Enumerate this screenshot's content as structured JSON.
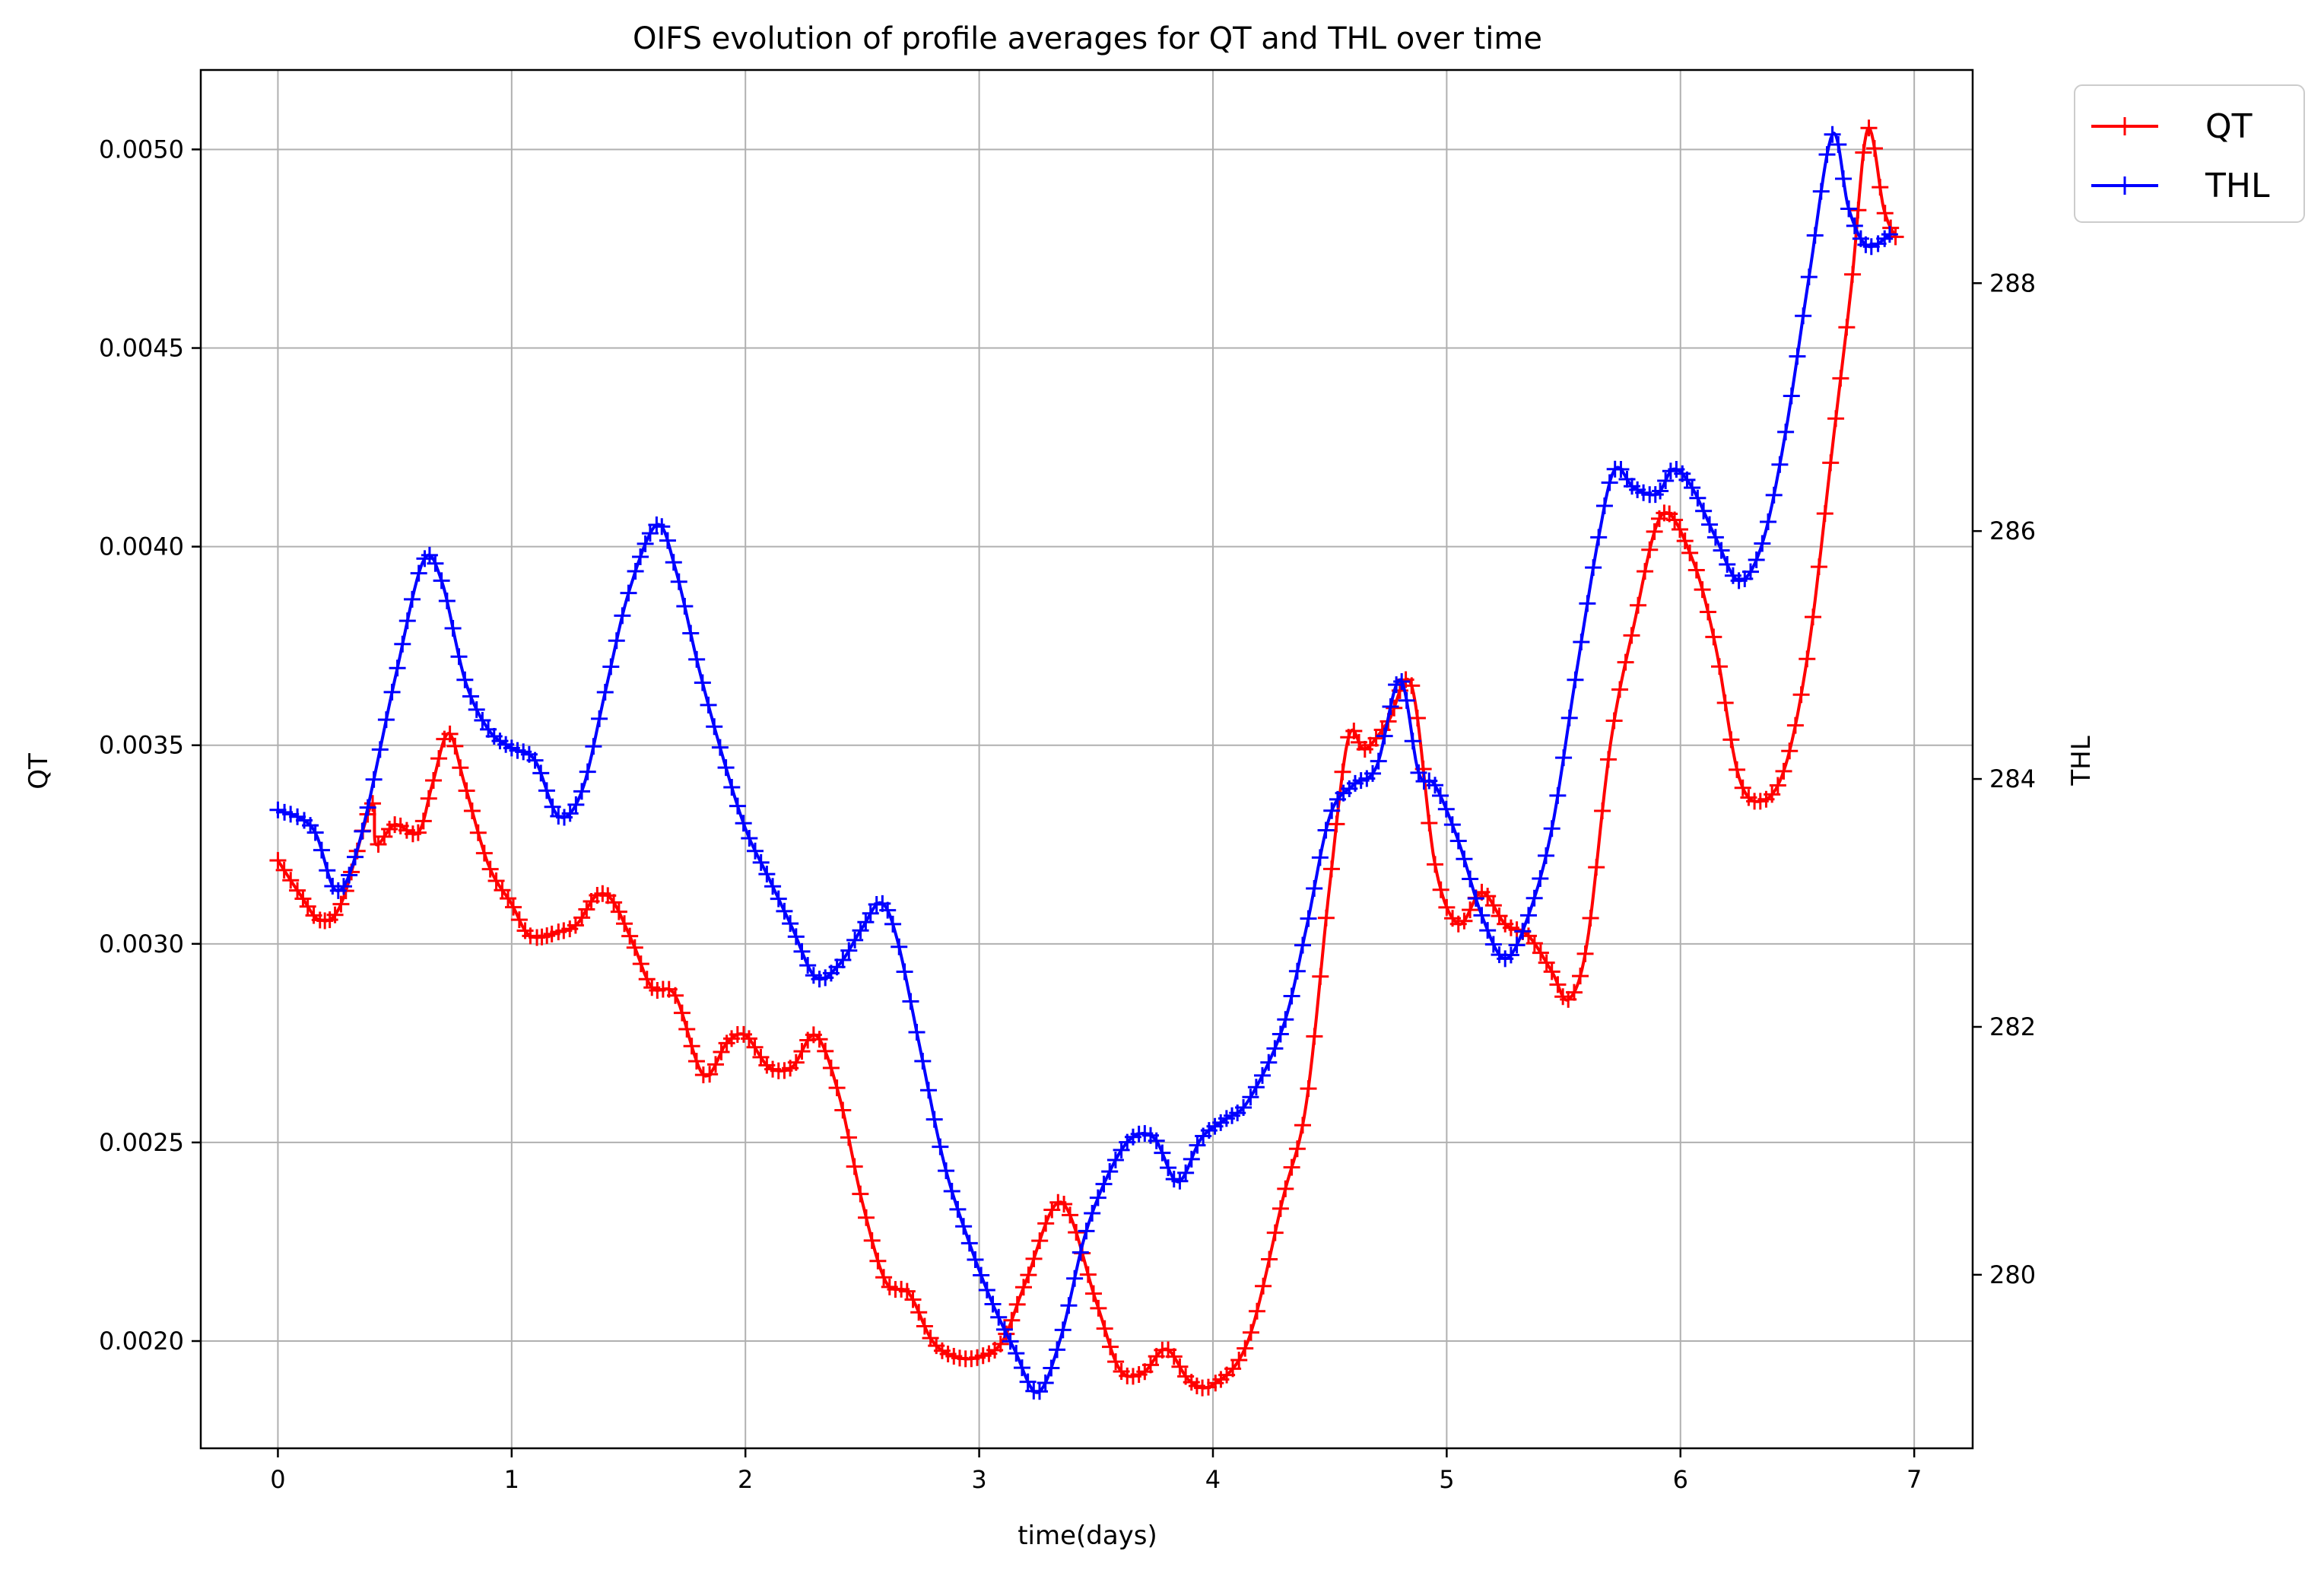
{
  "chart_data": {
    "type": "line",
    "title": "OIFS evolution of profile averages for QT and THL over time",
    "xlabel": "time(days)",
    "ylabel": "QT",
    "y2label": "THL",
    "xlim": [
      -0.33,
      7.25
    ],
    "ylim": [
      0.00173,
      0.0052
    ],
    "y2lim": [
      278.6,
      289.72
    ],
    "xticks": [
      0,
      1,
      2,
      3,
      4,
      5,
      6,
      7
    ],
    "yticks": [
      0.002,
      0.0025,
      0.003,
      0.0035,
      0.004,
      0.0045,
      0.005
    ],
    "ytick_labels": [
      "0.0020",
      "0.0025",
      "0.0030",
      "0.0035",
      "0.0040",
      "0.0045",
      "0.0050"
    ],
    "y2ticks": [
      280,
      282,
      284,
      286,
      288
    ],
    "grid": true,
    "legend_position": "outside-top-right",
    "marker": "+",
    "series": [
      {
        "name": "QT",
        "axis": "left",
        "color": "#ff0000",
        "points": [
          [
            0,
            0.00321
          ],
          [
            0.1,
            0.00312
          ],
          [
            0.18,
            0.00306
          ],
          [
            0.27,
            0.0031
          ],
          [
            0.4,
            0.00335
          ],
          [
            0.42,
            0.00325
          ],
          [
            0.5,
            0.0033
          ],
          [
            0.6,
            0.00328
          ],
          [
            0.66,
            0.0034
          ],
          [
            0.73,
            0.00353
          ],
          [
            0.8,
            0.0034
          ],
          [
            0.9,
            0.0032
          ],
          [
            1.0,
            0.0031
          ],
          [
            1.08,
            0.00302
          ],
          [
            1.2,
            0.00303
          ],
          [
            1.28,
            0.00305
          ],
          [
            1.36,
            0.00312
          ],
          [
            1.43,
            0.00311
          ],
          [
            1.52,
            0.003
          ],
          [
            1.6,
            0.00289
          ],
          [
            1.7,
            0.00287
          ],
          [
            1.82,
            0.00267
          ],
          [
            1.92,
            0.00275
          ],
          [
            2.0,
            0.00277
          ],
          [
            2.1,
            0.00269
          ],
          [
            2.2,
            0.00269
          ],
          [
            2.3,
            0.00277
          ],
          [
            2.4,
            0.00262
          ],
          [
            2.5,
            0.00235
          ],
          [
            2.6,
            0.00215
          ],
          [
            2.7,
            0.00212
          ],
          [
            2.8,
            0.002
          ],
          [
            2.9,
            0.00196
          ],
          [
            3.0,
            0.00196
          ],
          [
            3.1,
            0.002
          ],
          [
            3.2,
            0.00215
          ],
          [
            3.35,
            0.00235
          ],
          [
            3.5,
            0.0021
          ],
          [
            3.6,
            0.00193
          ],
          [
            3.7,
            0.00192
          ],
          [
            3.8,
            0.00198
          ],
          [
            3.9,
            0.0019
          ],
          [
            4.0,
            0.00189
          ],
          [
            4.15,
            0.002
          ],
          [
            4.3,
            0.00236
          ],
          [
            4.4,
            0.0026
          ],
          [
            4.5,
            0.00315
          ],
          [
            4.58,
            0.00352
          ],
          [
            4.65,
            0.00349
          ],
          [
            4.75,
            0.00356
          ],
          [
            4.85,
            0.00365
          ],
          [
            4.95,
            0.0032
          ],
          [
            5.05,
            0.00305
          ],
          [
            5.15,
            0.00313
          ],
          [
            5.25,
            0.00305
          ],
          [
            5.35,
            0.00302
          ],
          [
            5.45,
            0.00293
          ],
          [
            5.52,
            0.00286
          ],
          [
            5.6,
            0.003
          ],
          [
            5.7,
            0.0035
          ],
          [
            5.8,
            0.0038
          ],
          [
            5.92,
            0.00408
          ],
          [
            6.05,
            0.00397
          ],
          [
            6.15,
            0.00375
          ],
          [
            6.25,
            0.00342
          ],
          [
            6.35,
            0.00336
          ],
          [
            6.45,
            0.00345
          ],
          [
            6.55,
            0.00375
          ],
          [
            6.65,
            0.00425
          ],
          [
            6.73,
            0.00465
          ],
          [
            6.8,
            0.00505
          ],
          [
            6.87,
            0.00485
          ],
          [
            6.92,
            0.00478
          ]
        ]
      },
      {
        "name": "THL",
        "axis": "right",
        "color": "#0000ff",
        "points": [
          [
            0,
            283.75
          ],
          [
            0.15,
            283.6
          ],
          [
            0.25,
            283.1
          ],
          [
            0.35,
            283.5
          ],
          [
            0.5,
            284.8
          ],
          [
            0.62,
            285.75
          ],
          [
            0.7,
            285.6
          ],
          [
            0.8,
            284.8
          ],
          [
            0.9,
            284.4
          ],
          [
            1.0,
            284.25
          ],
          [
            1.1,
            284.15
          ],
          [
            1.2,
            283.7
          ],
          [
            1.3,
            283.9
          ],
          [
            1.4,
            284.7
          ],
          [
            1.5,
            285.5
          ],
          [
            1.62,
            286.05
          ],
          [
            1.7,
            285.7
          ],
          [
            1.8,
            284.9
          ],
          [
            1.9,
            284.2
          ],
          [
            2.0,
            283.6
          ],
          [
            2.1,
            283.2
          ],
          [
            2.2,
            282.8
          ],
          [
            2.3,
            282.4
          ],
          [
            2.4,
            282.5
          ],
          [
            2.5,
            282.8
          ],
          [
            2.58,
            283.0
          ],
          [
            2.65,
            282.7
          ],
          [
            2.75,
            281.8
          ],
          [
            2.85,
            280.9
          ],
          [
            2.95,
            280.3
          ],
          [
            3.05,
            279.8
          ],
          [
            3.15,
            279.4
          ],
          [
            3.25,
            279.05
          ],
          [
            3.35,
            279.5
          ],
          [
            3.45,
            280.3
          ],
          [
            3.55,
            280.8
          ],
          [
            3.65,
            281.1
          ],
          [
            3.75,
            281.1
          ],
          [
            3.85,
            280.75
          ],
          [
            3.95,
            281.1
          ],
          [
            4.05,
            281.25
          ],
          [
            4.15,
            281.4
          ],
          [
            4.3,
            282.0
          ],
          [
            4.4,
            282.8
          ],
          [
            4.5,
            283.7
          ],
          [
            4.6,
            283.95
          ],
          [
            4.7,
            284.1
          ],
          [
            4.8,
            284.8
          ],
          [
            4.88,
            284.05
          ],
          [
            4.95,
            283.95
          ],
          [
            5.05,
            283.5
          ],
          [
            5.15,
            282.9
          ],
          [
            5.25,
            282.55
          ],
          [
            5.35,
            282.9
          ],
          [
            5.45,
            283.6
          ],
          [
            5.55,
            284.8
          ],
          [
            5.65,
            285.95
          ],
          [
            5.72,
            286.5
          ],
          [
            5.8,
            286.35
          ],
          [
            5.9,
            286.3
          ],
          [
            5.97,
            286.5
          ],
          [
            6.05,
            286.35
          ],
          [
            6.15,
            285.95
          ],
          [
            6.25,
            285.6
          ],
          [
            6.35,
            285.9
          ],
          [
            6.45,
            286.8
          ],
          [
            6.55,
            288.05
          ],
          [
            6.65,
            289.2
          ],
          [
            6.72,
            288.6
          ],
          [
            6.8,
            288.3
          ],
          [
            6.9,
            288.4
          ]
        ]
      }
    ]
  }
}
